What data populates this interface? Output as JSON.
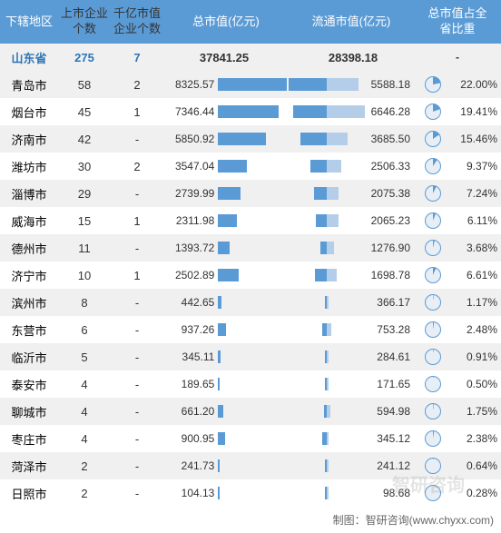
{
  "columns": {
    "region": "下辖地区",
    "listed": "上市企业\n个数",
    "billion": "千亿市值\n企业个数",
    "total": "总市值(亿元)",
    "circ": "流通市值(亿元)",
    "pct": "总市值占全\n省比重"
  },
  "summary": {
    "region": "山东省",
    "listed": "275",
    "billion": "7",
    "total": "37841.25",
    "circ": "28398.18",
    "pct": "-"
  },
  "max_total": 8325.57,
  "max_circ": 6646.28,
  "colors": {
    "header_bg": "#5b9bd5",
    "header_fg": "#ffffff",
    "row_even": "#f0f0f0",
    "row_odd": "#ffffff",
    "summary_fg": "#2e75b6",
    "bar_dark": "#5b9bd5",
    "bar_light": "#b4cde8",
    "pie_fg": "#5b9bd5",
    "pie_bg": "#e8eef5",
    "text": "#333333"
  },
  "rows": [
    {
      "region": "青岛市",
      "listed": "58",
      "billion": "2",
      "total": 8325.57,
      "circ": 5588.18,
      "pct": 22.0
    },
    {
      "region": "烟台市",
      "listed": "45",
      "billion": "1",
      "total": 7346.44,
      "circ": 6646.28,
      "pct": 19.41
    },
    {
      "region": "济南市",
      "listed": "42",
      "billion": "-",
      "total": 5850.92,
      "circ": 3685.5,
      "pct": 15.46
    },
    {
      "region": "潍坊市",
      "listed": "30",
      "billion": "2",
      "total": 3547.04,
      "circ": 2506.33,
      "pct": 9.37
    },
    {
      "region": "淄博市",
      "listed": "29",
      "billion": "-",
      "total": 2739.99,
      "circ": 2075.38,
      "pct": 7.24
    },
    {
      "region": "威海市",
      "listed": "15",
      "billion": "1",
      "total": 2311.98,
      "circ": 2065.23,
      "pct": 6.11
    },
    {
      "region": "德州市",
      "listed": "11",
      "billion": "-",
      "total": 1393.72,
      "circ": 1276.9,
      "pct": 3.68
    },
    {
      "region": "济宁市",
      "listed": "10",
      "billion": "1",
      "total": 2502.89,
      "circ": 1698.78,
      "pct": 6.61
    },
    {
      "region": "滨州市",
      "listed": "8",
      "billion": "-",
      "total": 442.65,
      "circ": 366.17,
      "pct": 1.17
    },
    {
      "region": "东营市",
      "listed": "6",
      "billion": "-",
      "total": 937.26,
      "circ": 753.28,
      "pct": 2.48
    },
    {
      "region": "临沂市",
      "listed": "5",
      "billion": "-",
      "total": 345.11,
      "circ": 284.61,
      "pct": 0.91
    },
    {
      "region": "泰安市",
      "listed": "4",
      "billion": "-",
      "total": 189.65,
      "circ": 171.65,
      "pct": 0.5
    },
    {
      "region": "聊城市",
      "listed": "4",
      "billion": "-",
      "total": 661.2,
      "circ": 594.98,
      "pct": 1.75
    },
    {
      "region": "枣庄市",
      "listed": "4",
      "billion": "-",
      "total": 900.95,
      "circ": 345.12,
      "pct": 2.38
    },
    {
      "region": "菏泽市",
      "listed": "2",
      "billion": "-",
      "total": 241.73,
      "circ": 241.12,
      "pct": 0.64
    },
    {
      "region": "日照市",
      "listed": "2",
      "billion": "-",
      "total": 104.13,
      "circ": 98.68,
      "pct": 0.28
    }
  ],
  "footer": "制图：智研咨询(www.chyxx.com)",
  "watermark": "智研咨询"
}
